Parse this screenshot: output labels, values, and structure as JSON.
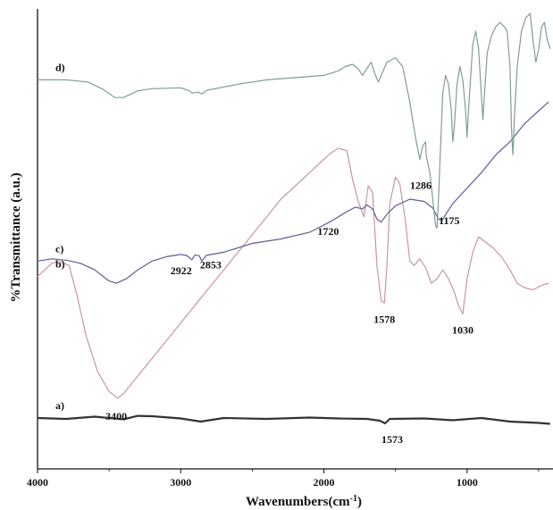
{
  "chart_data": {
    "type": "line",
    "title": "",
    "xlabel": "Wavenumbers(cm",
    "xlabel_sup": "-1",
    "xlabel_close": ")",
    "ylabel": "%Transmittance (a.u.)",
    "xlim": [
      4000,
      400
    ],
    "x_reversed": true,
    "y_ticks_shown": false,
    "grid": false,
    "x_ticks": [
      4000,
      3000,
      2000,
      1000
    ],
    "x_tick_labels": [
      "4000",
      "3000",
      "2000",
      "1000"
    ],
    "series": [
      {
        "name": "a)",
        "color": "#333333",
        "points": [
          [
            4000,
            0.105
          ],
          [
            3800,
            0.103
          ],
          [
            3600,
            0.108
          ],
          [
            3400,
            0.102
          ],
          [
            3300,
            0.11
          ],
          [
            3200,
            0.109
          ],
          [
            3000,
            0.104
          ],
          [
            2860,
            0.097
          ],
          [
            2700,
            0.105
          ],
          [
            2400,
            0.103
          ],
          [
            2100,
            0.106
          ],
          [
            1900,
            0.104
          ],
          [
            1700,
            0.103
          ],
          [
            1610,
            0.099
          ],
          [
            1573,
            0.093
          ],
          [
            1540,
            0.103
          ],
          [
            1300,
            0.104
          ],
          [
            1100,
            0.1
          ],
          [
            900,
            0.105
          ],
          [
            700,
            0.097
          ],
          [
            500,
            0.094
          ],
          [
            420,
            0.092
          ]
        ]
      },
      {
        "name": "b)",
        "color": "#c9969c",
        "points": [
          [
            4000,
            0.425
          ],
          [
            3950,
            0.44
          ],
          [
            3900,
            0.455
          ],
          [
            3850,
            0.46
          ],
          [
            3780,
            0.45
          ],
          [
            3730,
            0.39
          ],
          [
            3660,
            0.29
          ],
          [
            3580,
            0.21
          ],
          [
            3500,
            0.165
          ],
          [
            3440,
            0.15
          ],
          [
            3400,
            0.16
          ],
          [
            3300,
            0.2
          ],
          [
            3100,
            0.28
          ],
          [
            2900,
            0.36
          ],
          [
            2700,
            0.44
          ],
          [
            2500,
            0.52
          ],
          [
            2300,
            0.6
          ],
          [
            2100,
            0.66
          ],
          [
            1950,
            0.705
          ],
          [
            1900,
            0.715
          ],
          [
            1840,
            0.71
          ],
          [
            1800,
            0.645
          ],
          [
            1760,
            0.595
          ],
          [
            1720,
            0.56
          ],
          [
            1690,
            0.63
          ],
          [
            1660,
            0.615
          ],
          [
            1630,
            0.45
          ],
          [
            1600,
            0.37
          ],
          [
            1578,
            0.365
          ],
          [
            1560,
            0.45
          ],
          [
            1540,
            0.59
          ],
          [
            1500,
            0.65
          ],
          [
            1470,
            0.635
          ],
          [
            1430,
            0.55
          ],
          [
            1400,
            0.46
          ],
          [
            1370,
            0.45
          ],
          [
            1330,
            0.465
          ],
          [
            1290,
            0.445
          ],
          [
            1250,
            0.41
          ],
          [
            1210,
            0.42
          ],
          [
            1170,
            0.44
          ],
          [
            1130,
            0.42
          ],
          [
            1090,
            0.39
          ],
          [
            1060,
            0.36
          ],
          [
            1030,
            0.34
          ],
          [
            1000,
            0.42
          ],
          [
            960,
            0.48
          ],
          [
            920,
            0.515
          ],
          [
            880,
            0.505
          ],
          [
            820,
            0.49
          ],
          [
            760,
            0.47
          ],
          [
            700,
            0.44
          ],
          [
            650,
            0.41
          ],
          [
            600,
            0.4
          ],
          [
            540,
            0.395
          ],
          [
            480,
            0.405
          ],
          [
            430,
            0.41
          ]
        ]
      },
      {
        "name": "c)",
        "color": "#5d5d99",
        "points": [
          [
            4000,
            0.46
          ],
          [
            3900,
            0.465
          ],
          [
            3800,
            0.462
          ],
          [
            3700,
            0.455
          ],
          [
            3600,
            0.44
          ],
          [
            3500,
            0.415
          ],
          [
            3450,
            0.41
          ],
          [
            3380,
            0.42
          ],
          [
            3300,
            0.44
          ],
          [
            3200,
            0.46
          ],
          [
            3100,
            0.47
          ],
          [
            3000,
            0.475
          ],
          [
            2960,
            0.473
          ],
          [
            2922,
            0.463
          ],
          [
            2900,
            0.474
          ],
          [
            2870,
            0.472
          ],
          [
            2853,
            0.46
          ],
          [
            2820,
            0.473
          ],
          [
            2700,
            0.48
          ],
          [
            2500,
            0.5
          ],
          [
            2300,
            0.51
          ],
          [
            2100,
            0.525
          ],
          [
            1950,
            0.55
          ],
          [
            1850,
            0.57
          ],
          [
            1780,
            0.582
          ],
          [
            1730,
            0.578
          ],
          [
            1700,
            0.587
          ],
          [
            1660,
            0.578
          ],
          [
            1630,
            0.555
          ],
          [
            1600,
            0.548
          ],
          [
            1560,
            0.566
          ],
          [
            1500,
            0.585
          ],
          [
            1400,
            0.6
          ],
          [
            1300,
            0.595
          ],
          [
            1240,
            0.58
          ],
          [
            1200,
            0.555
          ],
          [
            1175,
            0.552
          ],
          [
            1150,
            0.565
          ],
          [
            1100,
            0.59
          ],
          [
            1000,
            0.625
          ],
          [
            900,
            0.66
          ],
          [
            800,
            0.7
          ],
          [
            700,
            0.73
          ],
          [
            600,
            0.77
          ],
          [
            500,
            0.8
          ],
          [
            430,
            0.82
          ]
        ]
      },
      {
        "name": "d)",
        "color": "#7f9e92",
        "points": [
          [
            4000,
            0.87
          ],
          [
            3800,
            0.87
          ],
          [
            3650,
            0.865
          ],
          [
            3550,
            0.85
          ],
          [
            3460,
            0.83
          ],
          [
            3400,
            0.83
          ],
          [
            3300,
            0.845
          ],
          [
            3200,
            0.85
          ],
          [
            3000,
            0.852
          ],
          [
            2940,
            0.845
          ],
          [
            2920,
            0.84
          ],
          [
            2880,
            0.842
          ],
          [
            2850,
            0.838
          ],
          [
            2820,
            0.846
          ],
          [
            2600,
            0.86
          ],
          [
            2400,
            0.87
          ],
          [
            2200,
            0.875
          ],
          [
            2000,
            0.88
          ],
          [
            1900,
            0.89
          ],
          [
            1850,
            0.9
          ],
          [
            1800,
            0.905
          ],
          [
            1760,
            0.895
          ],
          [
            1730,
            0.88
          ],
          [
            1700,
            0.895
          ],
          [
            1670,
            0.91
          ],
          [
            1640,
            0.88
          ],
          [
            1620,
            0.865
          ],
          [
            1600,
            0.88
          ],
          [
            1560,
            0.91
          ],
          [
            1500,
            0.92
          ],
          [
            1450,
            0.9
          ],
          [
            1400,
            0.82
          ],
          [
            1360,
            0.74
          ],
          [
            1330,
            0.69
          ],
          [
            1310,
            0.72
          ],
          [
            1290,
            0.73
          ],
          [
            1286,
            0.7
          ],
          [
            1260,
            0.66
          ],
          [
            1240,
            0.6
          ],
          [
            1220,
            0.54
          ],
          [
            1210,
            0.535
          ],
          [
            1200,
            0.6
          ],
          [
            1180,
            0.76
          ],
          [
            1170,
            0.84
          ],
          [
            1150,
            0.88
          ],
          [
            1130,
            0.86
          ],
          [
            1110,
            0.8
          ],
          [
            1100,
            0.73
          ],
          [
            1090,
            0.76
          ],
          [
            1070,
            0.86
          ],
          [
            1050,
            0.9
          ],
          [
            1030,
            0.87
          ],
          [
            1010,
            0.8
          ],
          [
            1000,
            0.74
          ],
          [
            990,
            0.8
          ],
          [
            960,
            0.95
          ],
          [
            940,
            0.98
          ],
          [
            920,
            0.94
          ],
          [
            905,
            0.86
          ],
          [
            890,
            0.78
          ],
          [
            880,
            0.83
          ],
          [
            860,
            0.93
          ],
          [
            830,
            0.97
          ],
          [
            800,
            0.99
          ],
          [
            770,
            1.0
          ],
          [
            740,
            0.99
          ],
          [
            720,
            0.98
          ],
          [
            700,
            0.9
          ],
          [
            690,
            0.76
          ],
          [
            680,
            0.7
          ],
          [
            670,
            0.78
          ],
          [
            650,
            0.9
          ],
          [
            620,
            0.98
          ],
          [
            590,
            1.01
          ],
          [
            560,
            1.02
          ],
          [
            540,
            0.96
          ],
          [
            520,
            0.91
          ],
          [
            500,
            0.94
          ],
          [
            480,
            0.99
          ],
          [
            460,
            1.0
          ],
          [
            440,
            0.96
          ],
          [
            420,
            0.94
          ]
        ]
      }
    ],
    "annotations": [
      {
        "text": "3400",
        "x": 3400,
        "y": 0.15,
        "dx": -8,
        "dy": 24
      },
      {
        "text": "2922",
        "x": 2922,
        "y": 0.463,
        "dx": -12,
        "dy": 16
      },
      {
        "text": "2853",
        "x": 2853,
        "y": 0.46,
        "dx": 10,
        "dy": 8
      },
      {
        "text": "1720",
        "x": 1720,
        "y": 0.56,
        "dx": -40,
        "dy": 20
      },
      {
        "text": "1578",
        "x": 1578,
        "y": 0.365,
        "dx": 0,
        "dy": 22
      },
      {
        "text": "1030",
        "x": 1030,
        "y": 0.34,
        "dx": 0,
        "dy": 22
      },
      {
        "text": "1286",
        "x": 1286,
        "y": 0.7,
        "dx": -6,
        "dy": 38
      },
      {
        "text": "1175",
        "x": 1175,
        "y": 0.552,
        "dx": 8,
        "dy": 4
      },
      {
        "text": "1573",
        "x": 1573,
        "y": 0.093,
        "dx": 8,
        "dy": 22
      }
    ]
  }
}
